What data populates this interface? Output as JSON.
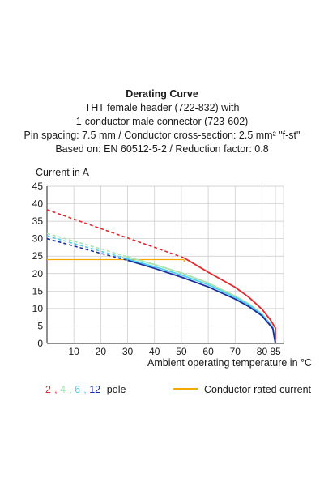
{
  "chart_data": {
    "type": "line",
    "title": "Derating Curve",
    "subtitle_lines": [
      "THT female header (722-832) with",
      "1-conductor male connector  (723-602)",
      "Pin spacing: 7.5 mm / Conductor cross-section: 2.5 mm² \"f-st\"",
      "Based on: EN 60512-5-2 / Reduction factor: 0.8"
    ],
    "ylabel": "Current in A",
    "xlabel": "Ambient operating temperature in °C",
    "xlim": [
      0,
      88
    ],
    "ylim": [
      0,
      45
    ],
    "xticks": [
      10,
      20,
      30,
      40,
      50,
      60,
      70,
      80,
      85
    ],
    "yticks": [
      0,
      5,
      10,
      15,
      20,
      25,
      30,
      35,
      40,
      45
    ],
    "grid": true,
    "series": [
      {
        "name": "2-",
        "color": "#e8262b",
        "dashed_points": [
          [
            0,
            38.3
          ],
          [
            10,
            35.6
          ],
          [
            20,
            32.9
          ],
          [
            30,
            30.2
          ],
          [
            40,
            27.5
          ],
          [
            51,
            24.5
          ]
        ],
        "solid_points": [
          [
            51,
            24.5
          ],
          [
            60,
            20.4
          ],
          [
            70,
            16.1
          ],
          [
            75,
            13.3
          ],
          [
            80,
            9.8
          ],
          [
            83,
            6.9
          ],
          [
            85,
            4.4
          ],
          [
            85,
            0
          ]
        ]
      },
      {
        "name": "4-",
        "color": "#a8e3b0",
        "dashed_points": [
          [
            0,
            31.5
          ],
          [
            10,
            29.3
          ],
          [
            20,
            27.1
          ],
          [
            29,
            25.0
          ]
        ],
        "solid_points": [
          [
            29,
            25.0
          ],
          [
            40,
            22.6
          ],
          [
            50,
            20.2
          ],
          [
            60,
            17.3
          ],
          [
            70,
            13.6
          ],
          [
            75,
            11.4
          ],
          [
            80,
            8.5
          ],
          [
            84,
            4.8
          ],
          [
            85,
            0
          ]
        ]
      },
      {
        "name": "6-",
        "color": "#4fd0f0",
        "dashed_points": [
          [
            0,
            30.8
          ],
          [
            10,
            28.6
          ],
          [
            20,
            26.4
          ],
          [
            28,
            24.6
          ]
        ],
        "solid_points": [
          [
            28,
            24.6
          ],
          [
            40,
            22.0
          ],
          [
            50,
            19.6
          ],
          [
            60,
            16.8
          ],
          [
            70,
            13.2
          ],
          [
            75,
            11.1
          ],
          [
            80,
            8.2
          ],
          [
            84,
            4.6
          ],
          [
            85,
            0
          ]
        ]
      },
      {
        "name": "12-",
        "color": "#1a2f9e",
        "dashed_points": [
          [
            0,
            30.0
          ],
          [
            10,
            27.9
          ],
          [
            20,
            25.8
          ],
          [
            30,
            23.8
          ]
        ],
        "solid_points": [
          [
            30,
            23.8
          ],
          [
            40,
            21.5
          ],
          [
            50,
            19.0
          ],
          [
            60,
            16.2
          ],
          [
            70,
            12.7
          ],
          [
            75,
            10.6
          ],
          [
            80,
            7.9
          ],
          [
            84,
            4.3
          ],
          [
            85,
            0
          ]
        ]
      }
    ],
    "conductor_rated_current": {
      "name": "Conductor rated current",
      "color": "#f5a800",
      "value": 24,
      "x_end": 51
    },
    "legend": {
      "position": "bottom",
      "pole_suffix": " pole",
      "separator": ", "
    }
  }
}
